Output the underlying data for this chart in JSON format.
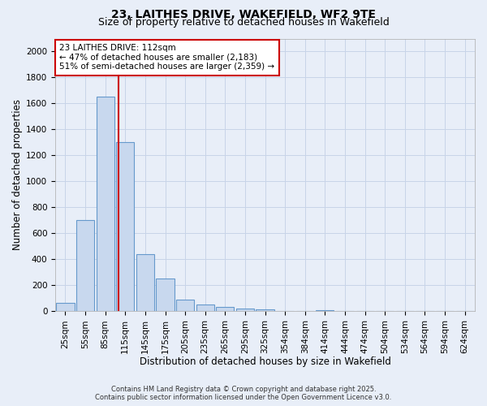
{
  "title1": "23, LAITHES DRIVE, WAKEFIELD, WF2 9TE",
  "title2": "Size of property relative to detached houses in Wakefield",
  "xlabel": "Distribution of detached houses by size in Wakefield",
  "ylabel": "Number of detached properties",
  "categories": [
    "25sqm",
    "55sqm",
    "85sqm",
    "115sqm",
    "145sqm",
    "175sqm",
    "205sqm",
    "235sqm",
    "265sqm",
    "295sqm",
    "325sqm",
    "354sqm",
    "384sqm",
    "414sqm",
    "444sqm",
    "474sqm",
    "504sqm",
    "534sqm",
    "564sqm",
    "594sqm",
    "624sqm"
  ],
  "values": [
    65,
    700,
    1650,
    1300,
    440,
    255,
    90,
    55,
    35,
    20,
    15,
    5,
    0,
    10,
    0,
    0,
    0,
    0,
    0,
    0,
    0
  ],
  "bar_color": "#c8d8ee",
  "bar_edge_color": "#6699cc",
  "annotation_line1": "23 LAITHES DRIVE: 112sqm",
  "annotation_line2": "← 47% of detached houses are smaller (2,183)",
  "annotation_line3": "51% of semi-detached houses are larger (2,359) →",
  "annotation_box_color": "#ffffff",
  "annotation_box_edge": "#cc0000",
  "ylim": [
    0,
    2100
  ],
  "yticks": [
    0,
    200,
    400,
    600,
    800,
    1000,
    1200,
    1400,
    1600,
    1800,
    2000
  ],
  "grid_color": "#c8d4e8",
  "bg_color": "#e8eef8",
  "footnote1": "Contains HM Land Registry data © Crown copyright and database right 2025.",
  "footnote2": "Contains public sector information licensed under the Open Government Licence v3.0.",
  "title1_fontsize": 10,
  "title2_fontsize": 9,
  "xlabel_fontsize": 8.5,
  "ylabel_fontsize": 8.5,
  "tick_fontsize": 7.5,
  "annotation_fontsize": 7.5,
  "footnote_fontsize": 6.0,
  "red_line_x": 2.68
}
